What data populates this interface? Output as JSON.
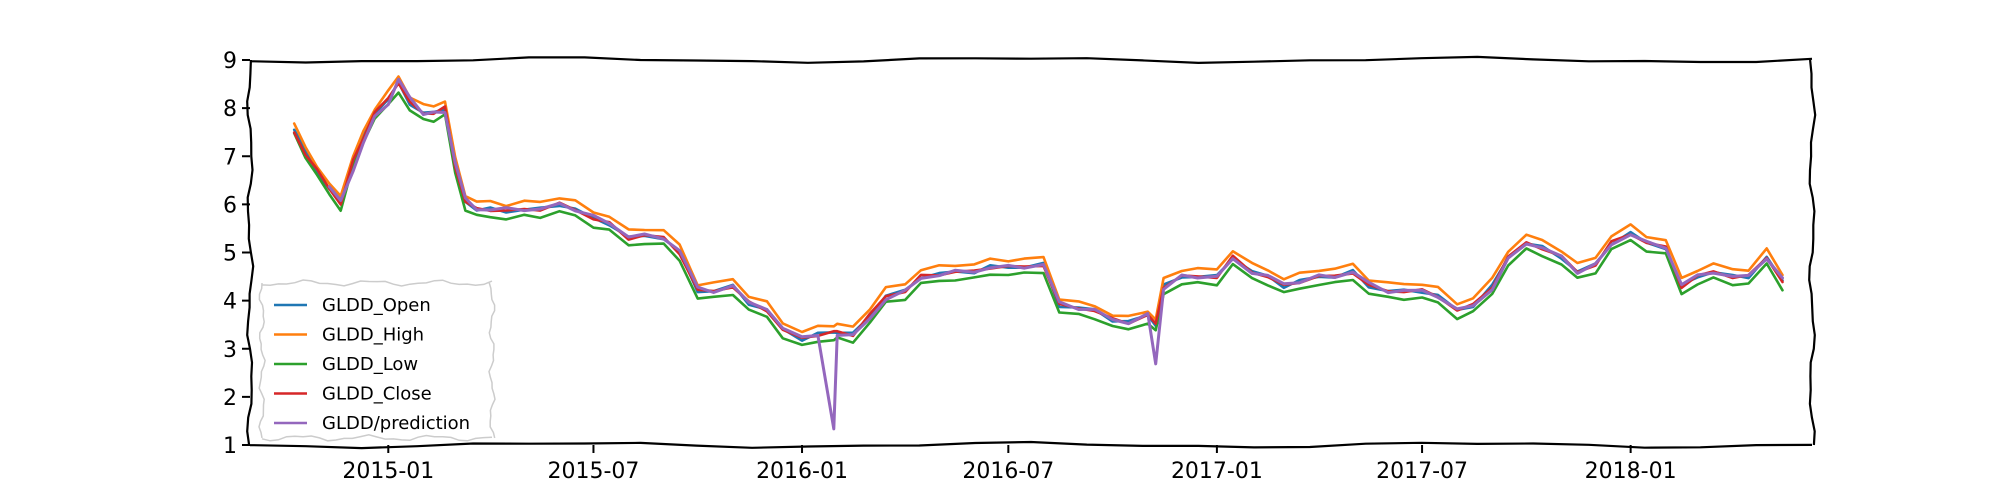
{
  "chart_data": {
    "type": "line",
    "title": "",
    "xlabel": "",
    "ylabel": "",
    "ylim": [
      1,
      9
    ],
    "xlim": [
      "2014-09-01",
      "2018-06-10"
    ],
    "yticks": [
      1,
      2,
      3,
      4,
      5,
      6,
      7,
      8,
      9
    ],
    "xticks": [
      {
        "date": "2015-01-01",
        "label": "2015-01"
      },
      {
        "date": "2015-07-01",
        "label": "2015-07"
      },
      {
        "date": "2016-01-01",
        "label": "2016-01"
      },
      {
        "date": "2016-07-01",
        "label": "2016-07"
      },
      {
        "date": "2017-01-01",
        "label": "2017-01"
      },
      {
        "date": "2017-07-01",
        "label": "2017-07"
      },
      {
        "date": "2018-01-01",
        "label": "2018-01"
      }
    ],
    "grid": false,
    "legend_position": "lower-left",
    "dates": [
      "2014-10-10",
      "2014-10-20",
      "2014-10-30",
      "2014-11-10",
      "2014-11-20",
      "2014-12-01",
      "2014-12-10",
      "2014-12-20",
      "2015-01-01",
      "2015-01-10",
      "2015-01-20",
      "2015-02-01",
      "2015-02-10",
      "2015-02-20",
      "2015-03-01",
      "2015-03-10",
      "2015-03-20",
      "2015-04-01",
      "2015-04-15",
      "2015-05-01",
      "2015-05-15",
      "2015-06-01",
      "2015-06-15",
      "2015-07-01",
      "2015-07-15",
      "2015-08-01",
      "2015-08-15",
      "2015-09-01",
      "2015-09-15",
      "2015-10-01",
      "2015-10-15",
      "2015-11-01",
      "2015-11-15",
      "2015-12-01",
      "2015-12-15",
      "2016-01-01",
      "2016-01-15",
      "2016-01-29",
      "2016-02-01",
      "2016-02-15",
      "2016-03-01",
      "2016-03-15",
      "2016-04-01",
      "2016-04-15",
      "2016-05-01",
      "2016-05-15",
      "2016-06-01",
      "2016-06-15",
      "2016-07-01",
      "2016-07-15",
      "2016-08-01",
      "2016-08-15",
      "2016-09-01",
      "2016-09-15",
      "2016-10-01",
      "2016-10-15",
      "2016-11-01",
      "2016-11-08",
      "2016-11-15",
      "2016-12-01",
      "2016-12-15",
      "2017-01-01",
      "2017-01-15",
      "2017-02-01",
      "2017-02-15",
      "2017-03-01",
      "2017-03-15",
      "2017-04-01",
      "2017-04-15",
      "2017-05-01",
      "2017-05-15",
      "2017-06-01",
      "2017-06-15",
      "2017-07-01",
      "2017-07-15",
      "2017-08-01",
      "2017-08-15",
      "2017-09-01",
      "2017-09-15",
      "2017-10-01",
      "2017-10-15",
      "2017-11-01",
      "2017-11-15",
      "2017-12-01",
      "2017-12-15",
      "2018-01-01",
      "2018-01-15",
      "2018-02-01",
      "2018-02-15",
      "2018-03-01",
      "2018-03-15",
      "2018-04-01",
      "2018-04-15",
      "2018-05-01",
      "2018-05-15"
    ],
    "series": [
      {
        "name": "GLDD_Open",
        "color": "#1f77b4",
        "values": [
          7.55,
          7.1,
          6.7,
          6.3,
          6.1,
          6.9,
          7.4,
          7.9,
          8.2,
          8.5,
          8.1,
          7.9,
          7.9,
          8.0,
          6.8,
          6.05,
          5.9,
          5.9,
          5.85,
          5.9,
          5.9,
          6.0,
          5.9,
          5.7,
          5.6,
          5.3,
          5.35,
          5.3,
          5.0,
          4.2,
          4.2,
          4.3,
          3.95,
          3.8,
          3.4,
          3.2,
          3.3,
          3.35,
          3.35,
          3.3,
          3.7,
          4.1,
          4.2,
          4.5,
          4.55,
          4.6,
          4.6,
          4.7,
          4.7,
          4.7,
          4.75,
          3.9,
          3.85,
          3.8,
          3.6,
          3.55,
          3.7,
          3.5,
          4.3,
          4.5,
          4.5,
          4.5,
          4.9,
          4.6,
          4.5,
          4.3,
          4.4,
          4.5,
          4.5,
          4.6,
          4.3,
          4.2,
          4.2,
          4.2,
          4.1,
          3.8,
          3.9,
          4.3,
          4.9,
          5.2,
          5.1,
          4.9,
          4.6,
          4.75,
          5.2,
          5.4,
          5.2,
          5.1,
          4.3,
          4.5,
          4.6,
          4.5,
          4.5,
          4.9,
          4.4
        ]
      },
      {
        "name": "GLDD_High",
        "color": "#ff7f0e",
        "values": [
          7.65,
          7.2,
          6.8,
          6.4,
          6.2,
          7.0,
          7.5,
          8.0,
          8.35,
          8.65,
          8.25,
          8.05,
          8.05,
          8.15,
          6.95,
          6.2,
          6.05,
          6.05,
          6.0,
          6.05,
          6.05,
          6.15,
          6.05,
          5.85,
          5.75,
          5.45,
          5.5,
          5.45,
          5.15,
          4.35,
          4.35,
          4.45,
          4.1,
          3.95,
          3.55,
          3.35,
          3.45,
          3.5,
          3.5,
          3.45,
          3.85,
          4.25,
          4.35,
          4.65,
          4.7,
          4.75,
          4.75,
          4.85,
          4.85,
          4.85,
          4.9,
          4.05,
          3.95,
          3.9,
          3.7,
          3.65,
          3.8,
          3.6,
          4.45,
          4.65,
          4.65,
          4.65,
          5.05,
          4.75,
          4.65,
          4.45,
          4.55,
          4.65,
          4.65,
          4.75,
          4.45,
          4.35,
          4.35,
          4.35,
          4.25,
          3.95,
          4.05,
          4.45,
          5.05,
          5.35,
          5.25,
          5.05,
          4.75,
          4.9,
          5.35,
          5.55,
          5.35,
          5.25,
          4.45,
          4.65,
          4.75,
          4.65,
          4.65,
          5.05,
          4.55
        ]
      },
      {
        "name": "GLDD_Low",
        "color": "#2ca02c",
        "values": [
          7.45,
          7.0,
          6.6,
          6.2,
          5.9,
          6.8,
          7.3,
          7.8,
          8.05,
          8.35,
          7.95,
          7.75,
          7.75,
          7.85,
          6.65,
          5.9,
          5.75,
          5.75,
          5.7,
          5.75,
          5.75,
          5.85,
          5.75,
          5.55,
          5.45,
          5.15,
          5.2,
          5.15,
          4.85,
          4.05,
          4.05,
          4.15,
          3.8,
          3.65,
          3.25,
          3.05,
          3.15,
          3.2,
          3.2,
          3.15,
          3.55,
          3.95,
          4.05,
          4.35,
          4.4,
          4.45,
          4.45,
          4.55,
          4.55,
          4.55,
          4.6,
          3.75,
          3.7,
          3.65,
          3.45,
          3.4,
          3.55,
          3.35,
          4.15,
          4.35,
          4.35,
          4.35,
          4.75,
          4.45,
          4.35,
          4.15,
          4.25,
          4.35,
          4.35,
          4.45,
          4.15,
          4.05,
          4.05,
          4.05,
          3.95,
          3.65,
          3.75,
          4.15,
          4.75,
          5.05,
          4.95,
          4.75,
          4.45,
          4.6,
          5.05,
          5.25,
          5.05,
          4.95,
          4.15,
          4.35,
          4.45,
          4.35,
          4.35,
          4.75,
          4.25
        ]
      },
      {
        "name": "GLDD_Close",
        "color": "#d62728",
        "values": [
          7.5,
          7.05,
          6.7,
          6.35,
          6.0,
          6.9,
          7.4,
          7.9,
          8.2,
          8.55,
          8.1,
          7.9,
          7.9,
          8.0,
          6.8,
          6.05,
          5.9,
          5.9,
          5.85,
          5.9,
          5.9,
          6.0,
          5.9,
          5.7,
          5.6,
          5.3,
          5.35,
          5.3,
          5.0,
          4.2,
          4.2,
          4.3,
          3.95,
          3.8,
          3.4,
          3.2,
          3.3,
          3.35,
          3.35,
          3.3,
          3.7,
          4.1,
          4.2,
          4.5,
          4.55,
          4.6,
          4.6,
          4.7,
          4.7,
          4.7,
          4.75,
          3.9,
          3.85,
          3.8,
          3.6,
          3.55,
          3.7,
          3.5,
          4.3,
          4.5,
          4.5,
          4.5,
          4.9,
          4.6,
          4.5,
          4.3,
          4.4,
          4.5,
          4.5,
          4.6,
          4.3,
          4.2,
          4.2,
          4.2,
          4.1,
          3.8,
          3.9,
          4.3,
          4.9,
          5.2,
          5.1,
          4.9,
          4.6,
          4.75,
          5.2,
          5.4,
          5.2,
          5.1,
          4.3,
          4.5,
          4.6,
          4.5,
          4.5,
          4.9,
          4.4
        ]
      },
      {
        "name": "GLDD/prediction",
        "color": "#9467bd",
        "values": [
          null,
          null,
          null,
          6.4,
          6.05,
          6.7,
          7.3,
          7.8,
          8.1,
          8.6,
          8.2,
          7.9,
          7.9,
          7.9,
          6.9,
          6.1,
          5.9,
          5.9,
          5.9,
          5.9,
          5.9,
          6.0,
          5.9,
          5.75,
          5.6,
          5.35,
          5.35,
          5.3,
          5.05,
          4.25,
          4.2,
          4.3,
          3.95,
          3.85,
          3.4,
          3.25,
          3.3,
          1.3,
          3.3,
          3.3,
          3.6,
          4.05,
          4.2,
          4.45,
          4.55,
          4.6,
          4.6,
          4.7,
          4.7,
          4.7,
          4.75,
          3.95,
          3.85,
          3.8,
          3.6,
          3.55,
          3.7,
          2.7,
          4.25,
          4.5,
          4.5,
          4.5,
          4.85,
          4.6,
          4.5,
          4.35,
          4.4,
          4.5,
          4.5,
          4.6,
          4.35,
          4.2,
          4.2,
          4.2,
          4.1,
          3.8,
          3.9,
          4.25,
          4.85,
          5.2,
          5.1,
          4.9,
          4.6,
          4.75,
          5.15,
          5.4,
          5.2,
          5.1,
          4.35,
          4.5,
          4.6,
          4.5,
          4.5,
          4.9,
          4.45
        ]
      }
    ]
  }
}
